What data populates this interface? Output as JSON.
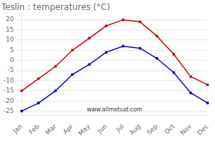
{
  "chart_data": {
    "type": "line",
    "title": "Teslin : temperatures (°C)",
    "categories": [
      "Jan",
      "Feb",
      "Mar",
      "Apr",
      "May",
      "Jun",
      "Jul",
      "Aug",
      "Sep",
      "Oct",
      "Nov",
      "Dec"
    ],
    "series": [
      {
        "color": "#cc0000",
        "marker": "square",
        "values": [
          -15,
          -9,
          -3,
          5,
          11,
          17,
          20,
          19,
          12,
          3,
          -8,
          -12
        ]
      },
      {
        "color": "#0000bb",
        "marker": "square",
        "values": [
          -25,
          -21,
          -15,
          -7,
          -2,
          4,
          7,
          6,
          1,
          -6,
          -16,
          -21
        ]
      }
    ],
    "ylim": [
      -27,
      22
    ],
    "yticks": [
      -25,
      -20,
      -15,
      -10,
      -5,
      0,
      5,
      10,
      15,
      20
    ],
    "grid": true,
    "annotations": [
      "www.allmetsat.com"
    ]
  }
}
